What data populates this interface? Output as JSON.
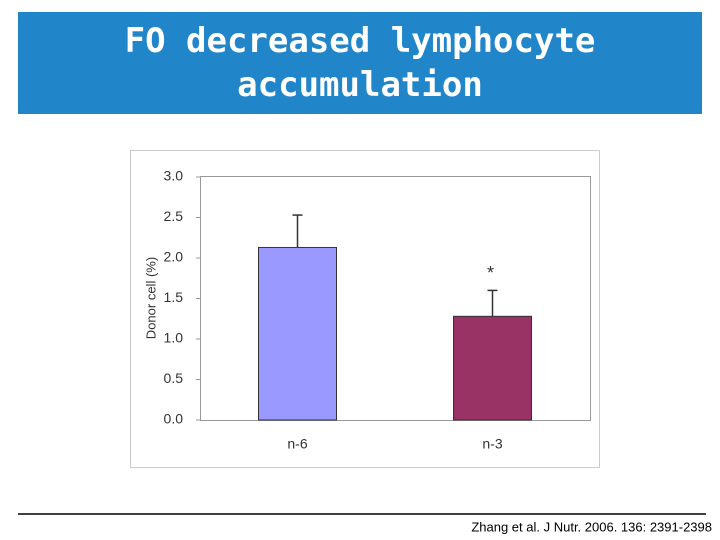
{
  "slide": {
    "title": [
      "FO decreased lymphocyte",
      "accumulation"
    ],
    "citation": "Zhang et al. J Nutr. 2006. 136: 2391-2398"
  },
  "chart_data": {
    "type": "bar",
    "y_label": "Donor cell (%)",
    "categories": [
      "n-6",
      "n-3"
    ],
    "values": [
      2.13,
      1.28
    ],
    "errors": [
      0.4,
      0.32
    ],
    "colors": [
      "#9999ff",
      "#993366"
    ],
    "annotation": "*",
    "ylim": [
      0,
      3
    ],
    "yticks": [
      {
        "value": 0,
        "label": "0.0"
      },
      {
        "value": 0.5,
        "label": "0.5"
      },
      {
        "value": 1,
        "label": "1.0"
      },
      {
        "value": 1.5,
        "label": "1.5"
      },
      {
        "value": 2,
        "label": "2.0"
      },
      {
        "value": 2.5,
        "label": "2.5"
      },
      {
        "value": 3,
        "label": "3.0"
      }
    ],
    "grid": false
  }
}
